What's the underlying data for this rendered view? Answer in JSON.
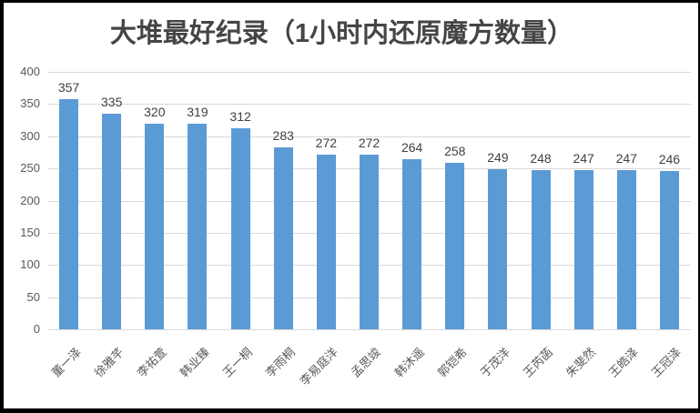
{
  "title": "大堆最好纪录（1小时内还原魔方数量）",
  "colors": {
    "bar": "#5b9bd5",
    "gridline": "#d9d9d9",
    "axis_text": "#595959",
    "value_text": "#404040",
    "title_text": "#454545",
    "frame_border": "#000000",
    "background": "#ffffff"
  },
  "chart_data": {
    "type": "bar",
    "title": "大堆最好纪录（1小时内还原魔方数量）",
    "categories": [
      "董一泽",
      "徐雅芊",
      "李祐萱",
      "韩业臻",
      "王一桐",
      "李雨桐",
      "李易庭洋",
      "孟思竣",
      "韩沐遥",
      "郭铠希",
      "于茂洋",
      "王芮菡",
      "朱斐然",
      "王皓泽",
      "王冠泽"
    ],
    "values": [
      357,
      335,
      320,
      319,
      312,
      283,
      272,
      272,
      264,
      258,
      249,
      248,
      247,
      247,
      246
    ],
    "xlabel": "",
    "ylabel": "",
    "ylim": [
      0,
      400
    ],
    "yticks": [
      0,
      50,
      100,
      150,
      200,
      250,
      300,
      350,
      400
    ],
    "grid": "horizontal",
    "legend": "none",
    "bar_color": "#5b9bd5",
    "data_labels": "above-bars",
    "x_label_rotation_deg": -45
  }
}
